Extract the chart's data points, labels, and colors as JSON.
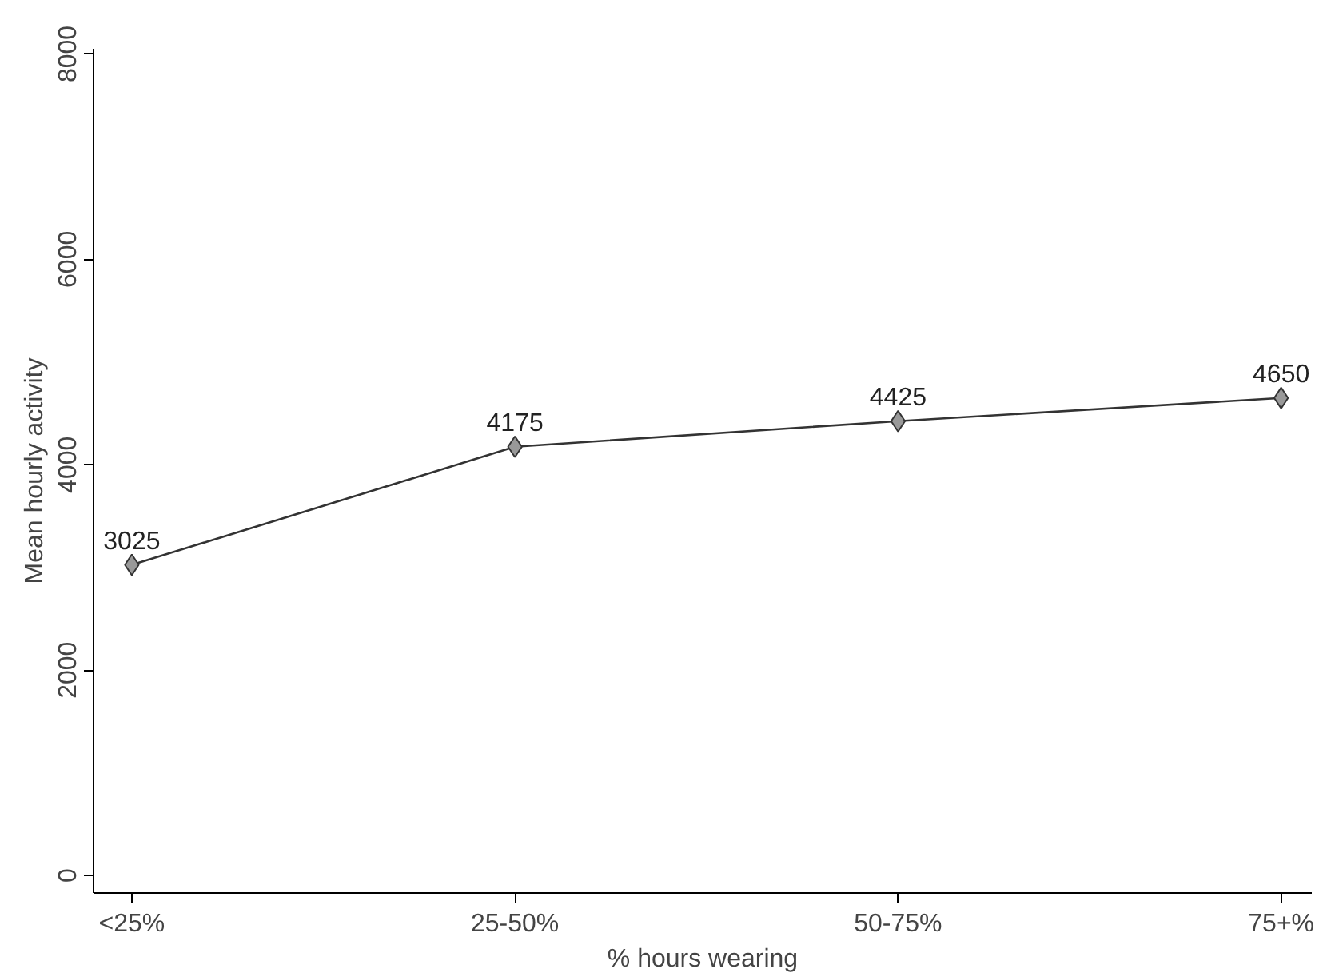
{
  "chart_data": {
    "type": "line",
    "xlabel": "% hours wearing",
    "ylabel": "Mean hourly activity",
    "categories": [
      "<25%",
      "25-50%",
      "50-75%",
      "75+%"
    ],
    "series": [
      {
        "color": "#333333",
        "values": [
          3025,
          4175,
          4425,
          4650
        ]
      }
    ],
    "ylim": [
      -170,
      8050
    ],
    "yticks": [
      0,
      2000,
      4000,
      6000,
      8000
    ],
    "data_labels": true,
    "marker": "diamond",
    "line_style": "solid",
    "grid": false
  }
}
